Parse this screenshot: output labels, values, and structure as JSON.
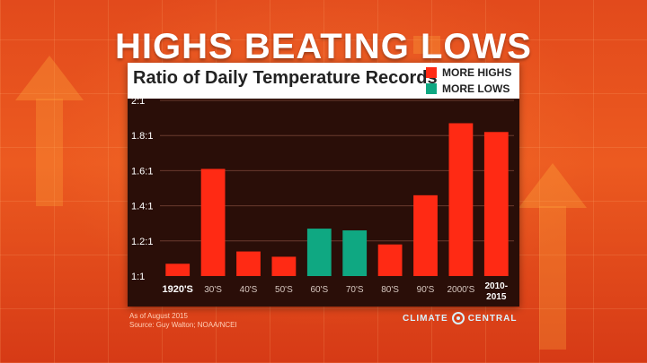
{
  "headline": "HIGHS BEATING LOWS",
  "colors": {
    "more_highs": "#ff2a14",
    "more_lows": "#0fa882"
  },
  "footer": {
    "note": "As of August 2015",
    "source": "Source: Guy Walton; NOAA/NCEI"
  },
  "logo": {
    "left": "CLIMATE",
    "right": "CENTRAL"
  },
  "chart_data": {
    "type": "bar",
    "title": "Ratio of Daily Temperature Records",
    "legend": [
      "MORE HIGHS",
      "MORE LOWS"
    ],
    "legend_position": "top-right",
    "categories": [
      "1920'S",
      "30'S",
      "40'S",
      "50'S",
      "60'S",
      "70'S",
      "80'S",
      "90'S",
      "2000'S",
      "2010-2015"
    ],
    "values": [
      1.07,
      1.61,
      1.14,
      1.11,
      1.27,
      1.26,
      1.18,
      1.46,
      1.87,
      1.82
    ],
    "series_type": [
      "MORE HIGHS",
      "MORE HIGHS",
      "MORE HIGHS",
      "MORE HIGHS",
      "MORE LOWS",
      "MORE LOWS",
      "MORE HIGHS",
      "MORE HIGHS",
      "MORE HIGHS",
      "MORE HIGHS"
    ],
    "ylim": [
      1,
      2
    ],
    "yticks": [
      1,
      1.2,
      1.4,
      1.6,
      1.8,
      2
    ],
    "ytick_labels": [
      "1:1",
      "1.2:1",
      "1.4:1",
      "1.6:1",
      "1.8:1",
      "2:1"
    ],
    "grid": true,
    "xlabel": "",
    "ylabel": ""
  }
}
